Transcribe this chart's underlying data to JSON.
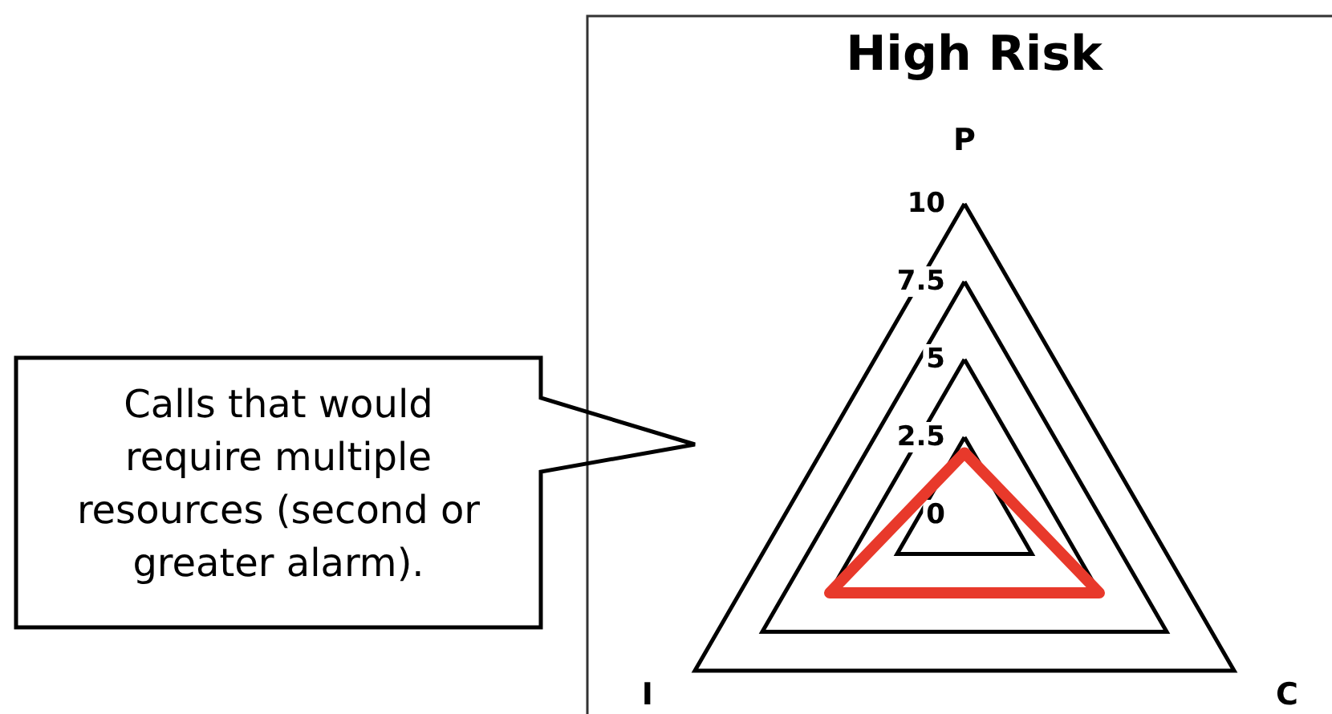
{
  "chart_data": {
    "type": "radar",
    "title": "High Risk",
    "categories": [
      "P",
      "C",
      "I"
    ],
    "series": [
      {
        "color": "#e8392b",
        "values": [
          2,
          5,
          5
        ]
      }
    ],
    "ylim": [
      0,
      10
    ],
    "yticks": [
      0,
      2.5,
      5,
      7.5,
      10
    ],
    "grid": true,
    "marker": "none",
    "line_style": "solid",
    "annotations": [
      "Calls that would require multiple resources (second or greater alarm)."
    ]
  }
}
